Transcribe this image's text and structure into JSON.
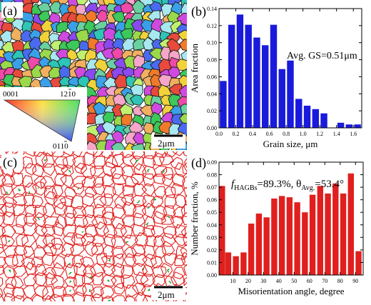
{
  "panel_a": {
    "label": "(a)",
    "scalebar": "2μm",
    "ipf_labels": {
      "top_left": "0001",
      "top_right": "1210",
      "bottom_right": "0110"
    },
    "colors": [
      "#e84a3c",
      "#f07a2a",
      "#f2d23a",
      "#9ad94a",
      "#3cc85a",
      "#2ec4b6",
      "#3aa0e8",
      "#4a6af0",
      "#8a4af0",
      "#d04ae0",
      "#f04aa8",
      "#f6a6c8",
      "#a8e8f0",
      "#c0f070",
      "#6ad0a0",
      "#f0b060"
    ]
  },
  "panel_c": {
    "label": "(c)",
    "scalebar": "2μm",
    "hagb_color": "#e0201e",
    "lagb_color": "#1fa02a"
  },
  "panel_b": {
    "label": "(b)",
    "annotation": "Avg. GS=0.51μm",
    "bar_color": "#1a1adc"
  },
  "panel_d": {
    "label": "(d)",
    "annotation_f": "f",
    "annotation_sub1": "HAGBs",
    "annotation_mid": "=89.3%, θ",
    "annotation_sub2": "Avg.",
    "annotation_end": "=53.4°",
    "bar_color": "#e0201e"
  },
  "chart_data": [
    {
      "type": "bar",
      "panel": "b",
      "xlabel": "Grain size, μm",
      "ylabel": "Area fraction",
      "xlim": [
        0,
        1.7
      ],
      "ylim": [
        0,
        0.14
      ],
      "xticks": [
        "0.0",
        "0.2",
        "0.4",
        "0.6",
        "0.8",
        "1.0",
        "1.2",
        "1.4",
        "1.6"
      ],
      "yticks": [
        "0.00",
        "0.02",
        "0.04",
        "0.06",
        "0.08",
        "0.10",
        "0.12",
        "0.14"
      ],
      "bar_width": 0.08,
      "x": [
        0.05,
        0.15,
        0.25,
        0.35,
        0.45,
        0.55,
        0.65,
        0.75,
        0.85,
        0.95,
        1.05,
        1.15,
        1.25,
        1.35,
        1.45,
        1.55,
        1.65
      ],
      "values": [
        0.055,
        0.121,
        0.133,
        0.121,
        0.106,
        0.097,
        0.121,
        0.069,
        0.079,
        0.034,
        0.026,
        0.022,
        0.017,
        0.0,
        0.006,
        0.004,
        0.004
      ]
    },
    {
      "type": "bar",
      "panel": "d",
      "xlabel": "Misorientation angle, degree",
      "ylabel": "Number fraction, %",
      "xlim": [
        1,
        95
      ],
      "ylim": [
        0,
        0.09
      ],
      "xticks": [
        "10",
        "20",
        "30",
        "40",
        "50",
        "60",
        "70",
        "80",
        "90"
      ],
      "yticks": [
        "0.00",
        "0.01",
        "0.02",
        "0.03",
        "0.04",
        "0.05",
        "0.06",
        "0.07",
        "0.08",
        "0.09"
      ],
      "bar_width": 3.9,
      "x": [
        3,
        7,
        12,
        17,
        22,
        27,
        32,
        37,
        42,
        47,
        52,
        57,
        62,
        67,
        72,
        77,
        82,
        87,
        92
      ],
      "values": [
        0.071,
        0.018,
        0.015,
        0.018,
        0.041,
        0.049,
        0.046,
        0.061,
        0.063,
        0.062,
        0.058,
        0.05,
        0.064,
        0.071,
        0.065,
        0.073,
        0.065,
        0.081,
        0.019
      ]
    }
  ]
}
